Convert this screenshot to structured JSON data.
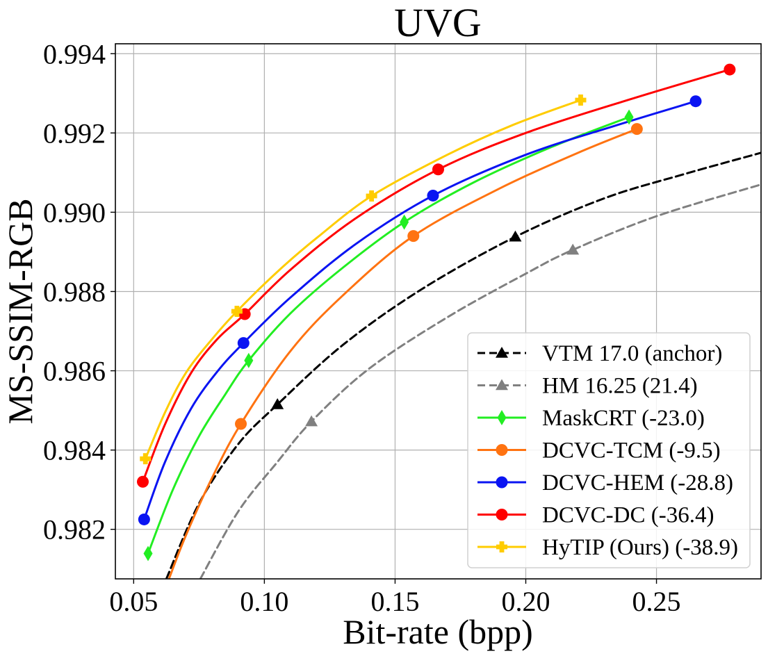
{
  "chart_data": {
    "type": "line",
    "title": "UVG",
    "xlabel": "Bit-rate (bpp)",
    "ylabel": "MS-SSIM-RGB",
    "xlim": [
      0.043,
      0.29
    ],
    "ylim": [
      0.98075,
      0.99425
    ],
    "xticks": [
      0.05,
      0.1,
      0.15,
      0.2,
      0.25
    ],
    "xtick_labels": [
      "0.05",
      "0.10",
      "0.15",
      "0.20",
      "0.25"
    ],
    "yticks": [
      0.982,
      0.984,
      0.986,
      0.988,
      0.99,
      0.992,
      0.994
    ],
    "ytick_labels": [
      "0.982",
      "0.984",
      "0.986",
      "0.988",
      "0.990",
      "0.992",
      "0.994"
    ],
    "grid": true,
    "legend_position": "lower-right",
    "series": [
      {
        "name": "VTM 17.0 (anchor)",
        "color": "#000000",
        "dashed": true,
        "marker": "triangle",
        "points": [
          [
            0.105,
            0.98515
          ],
          [
            0.196,
            0.98938
          ]
        ],
        "curve": [
          [
            0.0625,
            0.98075
          ],
          [
            0.075,
            0.98265
          ],
          [
            0.09,
            0.98415
          ],
          [
            0.105,
            0.98515
          ],
          [
            0.13,
            0.98665
          ],
          [
            0.16,
            0.98805
          ],
          [
            0.196,
            0.98938
          ],
          [
            0.23,
            0.99035
          ],
          [
            0.26,
            0.99095
          ],
          [
            0.29,
            0.9915
          ]
        ]
      },
      {
        "name": "HM 16.25 (21.4)",
        "color": "#808080",
        "dashed": true,
        "marker": "triangle",
        "points": [
          [
            0.118,
            0.98472
          ],
          [
            0.218,
            0.98905
          ]
        ],
        "curve": [
          [
            0.0755,
            0.98075
          ],
          [
            0.09,
            0.98245
          ],
          [
            0.105,
            0.9837
          ],
          [
            0.118,
            0.98472
          ],
          [
            0.14,
            0.98605
          ],
          [
            0.17,
            0.98735
          ],
          [
            0.2,
            0.98845
          ],
          [
            0.218,
            0.98905
          ],
          [
            0.25,
            0.9899
          ],
          [
            0.29,
            0.9907
          ]
        ]
      },
      {
        "name": "MaskCRT (-23.0)",
        "color": "#22ee22",
        "dashed": false,
        "marker": "diamond",
        "points": [
          [
            0.0555,
            0.98139
          ],
          [
            0.094,
            0.98626
          ],
          [
            0.1535,
            0.98975
          ],
          [
            0.2395,
            0.9924
          ]
        ],
        "curve": [
          [
            0.0555,
            0.98139
          ],
          [
            0.065,
            0.983
          ],
          [
            0.075,
            0.98435
          ],
          [
            0.085,
            0.9854
          ],
          [
            0.094,
            0.98626
          ],
          [
            0.11,
            0.98745
          ],
          [
            0.13,
            0.9886
          ],
          [
            0.1535,
            0.98975
          ],
          [
            0.18,
            0.99075
          ],
          [
            0.21,
            0.99165
          ],
          [
            0.2395,
            0.9924
          ]
        ]
      },
      {
        "name": "DCVC-TCM (-9.5)",
        "color": "#ff7311",
        "dashed": false,
        "marker": "circle",
        "points": [
          [
            0.091,
            0.98466
          ],
          [
            0.157,
            0.9894
          ],
          [
            0.2425,
            0.9921
          ]
        ],
        "curve": [
          [
            0.0635,
            0.98075
          ],
          [
            0.07,
            0.98185
          ],
          [
            0.08,
            0.9833
          ],
          [
            0.091,
            0.98466
          ],
          [
            0.11,
            0.9865
          ],
          [
            0.13,
            0.9879
          ],
          [
            0.157,
            0.9894
          ],
          [
            0.19,
            0.9906
          ],
          [
            0.22,
            0.9915
          ],
          [
            0.2425,
            0.9921
          ]
        ]
      },
      {
        "name": "DCVC-HEM (-28.8)",
        "color": "#0a14f2",
        "dashed": false,
        "marker": "circle",
        "points": [
          [
            0.054,
            0.98225
          ],
          [
            0.092,
            0.9867
          ],
          [
            0.1645,
            0.99042
          ],
          [
            0.265,
            0.9928
          ]
        ],
        "curve": [
          [
            0.054,
            0.98225
          ],
          [
            0.062,
            0.9837
          ],
          [
            0.072,
            0.98505
          ],
          [
            0.082,
            0.98598
          ],
          [
            0.092,
            0.9867
          ],
          [
            0.11,
            0.98785
          ],
          [
            0.135,
            0.9892
          ],
          [
            0.1645,
            0.99042
          ],
          [
            0.2,
            0.99145
          ],
          [
            0.235,
            0.9922
          ],
          [
            0.265,
            0.9928
          ]
        ]
      },
      {
        "name": "DCVC-DC (-36.4)",
        "color": "#ff0000",
        "dashed": false,
        "marker": "circle",
        "points": [
          [
            0.0535,
            0.9832
          ],
          [
            0.0925,
            0.98743
          ],
          [
            0.1665,
            0.99108
          ],
          [
            0.278,
            0.9936
          ]
        ],
        "curve": [
          [
            0.0535,
            0.9832
          ],
          [
            0.062,
            0.98465
          ],
          [
            0.072,
            0.98595
          ],
          [
            0.082,
            0.9868
          ],
          [
            0.0925,
            0.98743
          ],
          [
            0.11,
            0.98855
          ],
          [
            0.135,
            0.98985
          ],
          [
            0.1665,
            0.99108
          ],
          [
            0.2,
            0.992
          ],
          [
            0.24,
            0.99285
          ],
          [
            0.278,
            0.9936
          ]
        ]
      },
      {
        "name": "HyTIP (Ours) (-38.9)",
        "color": "#ffcc00",
        "dashed": false,
        "marker": "plus",
        "points": [
          [
            0.0545,
            0.98378
          ],
          [
            0.0895,
            0.9875
          ],
          [
            0.141,
            0.99041
          ],
          [
            0.221,
            0.99283
          ]
        ],
        "curve": [
          [
            0.0545,
            0.98378
          ],
          [
            0.062,
            0.98495
          ],
          [
            0.07,
            0.98595
          ],
          [
            0.08,
            0.9868
          ],
          [
            0.0895,
            0.9875
          ],
          [
            0.105,
            0.9885
          ],
          [
            0.12,
            0.98935
          ],
          [
            0.141,
            0.99041
          ],
          [
            0.17,
            0.99145
          ],
          [
            0.195,
            0.9922
          ],
          [
            0.221,
            0.99283
          ]
        ]
      }
    ]
  }
}
